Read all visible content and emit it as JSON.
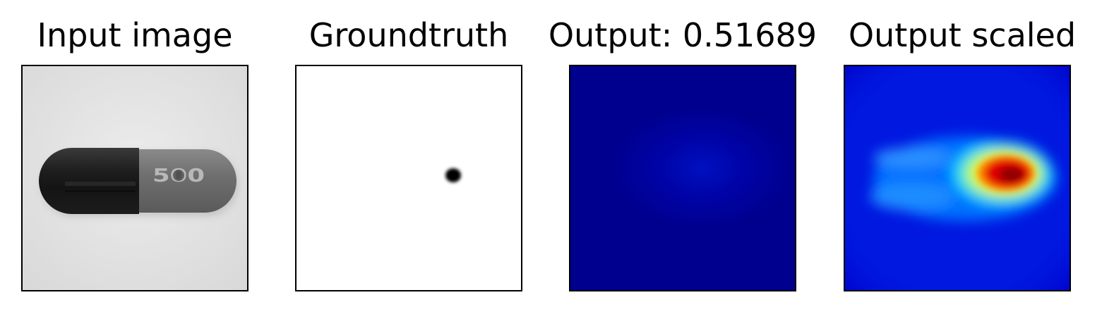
{
  "panels": [
    {
      "title": "Input image"
    },
    {
      "title": "Groundtruth"
    },
    {
      "title": "Output: 0.51689"
    },
    {
      "title": "Output scaled"
    }
  ],
  "capsule_print": "500",
  "colors": {
    "background_gray": "#e4e4e4",
    "capsule_dark": "#1b1b1b",
    "capsule_light": "#707070",
    "output_base": "#00008f",
    "jet_blue": "#0000ff",
    "jet_cyan": "#00c8ff",
    "jet_yellow": "#f0f000",
    "jet_red": "#e00000",
    "jet_darkred": "#8f0000"
  }
}
